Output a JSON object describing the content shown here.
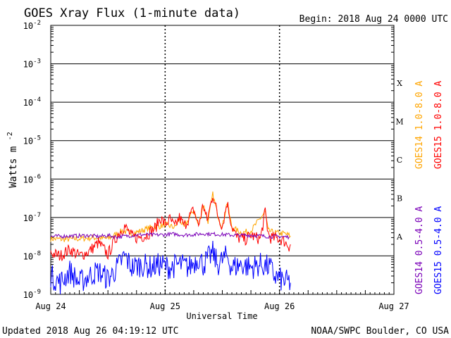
{
  "chart_data": {
    "type": "line",
    "title": "GOES Xray Flux (1-minute data)",
    "begin_label": "Begin:  2018 Aug 24 0000 UTC",
    "xlabel": "Universal Time",
    "ylabel": "Watts m",
    "ylabel_exponent": "-2",
    "y_scale": "log",
    "ylim": [
      1e-09,
      0.01
    ],
    "y_tick_labels": [
      {
        "value": 0.01,
        "base": "10",
        "exp": "-2"
      },
      {
        "value": 0.001,
        "base": "10",
        "exp": "-3"
      },
      {
        "value": 0.0001,
        "base": "10",
        "exp": "-4"
      },
      {
        "value": 1e-05,
        "base": "10",
        "exp": "-5"
      },
      {
        "value": 1e-06,
        "base": "10",
        "exp": "-6"
      },
      {
        "value": 1e-07,
        "base": "10",
        "exp": "-7"
      },
      {
        "value": 1e-08,
        "base": "10",
        "exp": "-8"
      },
      {
        "value": 1e-09,
        "base": "10",
        "exp": "-9"
      }
    ],
    "x_domain_hours": [
      0,
      72
    ],
    "x_ticks": [
      {
        "hours": 0,
        "label": "Aug 24"
      },
      {
        "hours": 24,
        "label": "Aug 25"
      },
      {
        "hours": 48,
        "label": "Aug 26"
      },
      {
        "hours": 72,
        "label": "Aug 27"
      }
    ],
    "flare_classes": [
      {
        "label": "X",
        "lower": 0.0001
      },
      {
        "label": "M",
        "lower": 1e-05
      },
      {
        "label": "C",
        "lower": 1e-06
      },
      {
        "label": "B",
        "lower": 1e-07
      },
      {
        "label": "A",
        "lower": 1e-08
      }
    ],
    "grid": "horizontal lines at each decade; dotted verticals at day boundaries",
    "legend_position": "right",
    "series": [
      {
        "name": "GOES15 1.0-8.0 A",
        "color": "#ff0000",
        "points": [
          [
            0,
            1.2e-08
          ],
          [
            2,
            1e-08
          ],
          [
            4,
            1.5e-08
          ],
          [
            6,
            1e-08
          ],
          [
            8,
            1.3e-08
          ],
          [
            10,
            2.2e-08
          ],
          [
            12,
            1.1e-08
          ],
          [
            14,
            3.5e-08
          ],
          [
            15.5,
            6e-08
          ],
          [
            17,
            3.2e-08
          ],
          [
            18,
            3e-08
          ],
          [
            20,
            3.4e-08
          ],
          [
            22,
            5.5e-08
          ],
          [
            23,
            1e-07
          ],
          [
            24,
            6.5e-08
          ],
          [
            25,
            9e-08
          ],
          [
            26,
            5.5e-08
          ],
          [
            27,
            1e-07
          ],
          [
            28,
            6e-08
          ],
          [
            30,
            1.6e-07
          ],
          [
            31,
            6e-08
          ],
          [
            32,
            2.2e-07
          ],
          [
            32.8,
            8e-08
          ],
          [
            34,
            4e-07
          ],
          [
            35,
            1.2e-07
          ],
          [
            36,
            6e-08
          ],
          [
            37,
            2.5e-07
          ],
          [
            38,
            6e-08
          ],
          [
            39,
            3e-08
          ],
          [
            41,
            2.7e-08
          ],
          [
            42,
            3.5e-08
          ],
          [
            43,
            3e-08
          ],
          [
            44,
            2.8e-08
          ],
          [
            45,
            1.4e-07
          ],
          [
            45.6,
            4e-08
          ],
          [
            46,
            3e-08
          ],
          [
            48,
            2.8e-08
          ],
          [
            49,
            2.4e-08
          ],
          [
            50,
            1.8e-08
          ],
          [
            50.3,
            2e-08
          ]
        ]
      },
      {
        "name": "GOES14 1.0-8.0 A",
        "color": "#ffa500",
        "points": [
          [
            0,
            2.8e-08
          ],
          [
            3,
            2.7e-08
          ],
          [
            6,
            2.8e-08
          ],
          [
            9,
            3e-08
          ],
          [
            12,
            2.8e-08
          ],
          [
            15,
            4.5e-08
          ],
          [
            17,
            3.8e-08
          ],
          [
            19,
            4.5e-08
          ],
          [
            21,
            5.5e-08
          ],
          [
            23,
            6e-08
          ],
          [
            24,
            6.5e-08
          ],
          [
            26,
            5.5e-08
          ],
          [
            27,
            9e-08
          ],
          [
            28,
            5.5e-08
          ],
          [
            30,
            1.6e-07
          ],
          [
            31,
            6e-08
          ],
          [
            32,
            2.2e-07
          ],
          [
            33,
            8e-08
          ],
          [
            34,
            4e-07
          ],
          [
            35,
            1.2e-07
          ],
          [
            36,
            5.5e-08
          ],
          [
            37,
            2.5e-07
          ],
          [
            38,
            5.5e-08
          ],
          [
            40,
            4e-08
          ],
          [
            42,
            4.5e-08
          ],
          [
            45,
            1.4e-07
          ],
          [
            45.6,
            4.5e-08
          ],
          [
            47,
            4e-08
          ],
          [
            49,
            3.8e-08
          ],
          [
            50.3,
            3.3e-08
          ]
        ]
      },
      {
        "name": "GOES15 0.5-4.0 A",
        "color": "#0000ff",
        "points": [
          [
            0,
            3e-09
          ],
          [
            2,
            2e-09
          ],
          [
            4,
            4e-09
          ],
          [
            6,
            2e-09
          ],
          [
            8,
            3e-09
          ],
          [
            10,
            4e-09
          ],
          [
            12,
            2.5e-09
          ],
          [
            14,
            5e-09
          ],
          [
            15.5,
            1e-08
          ],
          [
            17,
            5e-09
          ],
          [
            19,
            6e-09
          ],
          [
            21,
            5e-09
          ],
          [
            23,
            6e-09
          ],
          [
            25,
            5e-09
          ],
          [
            27,
            6e-09
          ],
          [
            29,
            5e-09
          ],
          [
            31,
            9e-09
          ],
          [
            32,
            6e-09
          ],
          [
            34,
            1.2e-08
          ],
          [
            35,
            6e-09
          ],
          [
            37,
            1e-08
          ],
          [
            38,
            5e-09
          ],
          [
            40,
            6e-09
          ],
          [
            42,
            5e-09
          ],
          [
            44,
            6e-09
          ],
          [
            46,
            5e-09
          ],
          [
            47,
            3e-09
          ],
          [
            48,
            2.5e-09
          ],
          [
            49,
            2.2e-09
          ],
          [
            50.3,
            2e-09
          ]
        ]
      },
      {
        "name": "GOES14 0.5-4.0 A",
        "color": "#7a00b8",
        "points": [
          [
            0,
            3.2e-08
          ],
          [
            4,
            3.3e-08
          ],
          [
            8,
            3.4e-08
          ],
          [
            10,
            3.2e-08
          ],
          [
            12,
            3.4e-08
          ],
          [
            14,
            3.1e-08
          ],
          [
            16,
            3.3e-08
          ],
          [
            18,
            3.5e-08
          ],
          [
            20,
            3.6e-08
          ],
          [
            22,
            3.5e-08
          ],
          [
            24,
            3.6e-08
          ],
          [
            26,
            3.7e-08
          ],
          [
            28,
            3.5e-08
          ],
          [
            30,
            3.6e-08
          ],
          [
            32,
            3.8e-08
          ],
          [
            34,
            3.7e-08
          ],
          [
            36,
            3.6e-08
          ],
          [
            38,
            3.5e-08
          ],
          [
            40,
            3.4e-08
          ],
          [
            42,
            3.5e-08
          ],
          [
            44,
            3.3e-08
          ],
          [
            46,
            3.2e-08
          ],
          [
            48,
            3.2e-08
          ],
          [
            50,
            3.1e-08
          ]
        ]
      }
    ]
  },
  "footer": {
    "updated": "Updated 2018 Aug 26 04:19:12 UTC",
    "source": "NOAA/SWPC Boulder, CO USA"
  }
}
